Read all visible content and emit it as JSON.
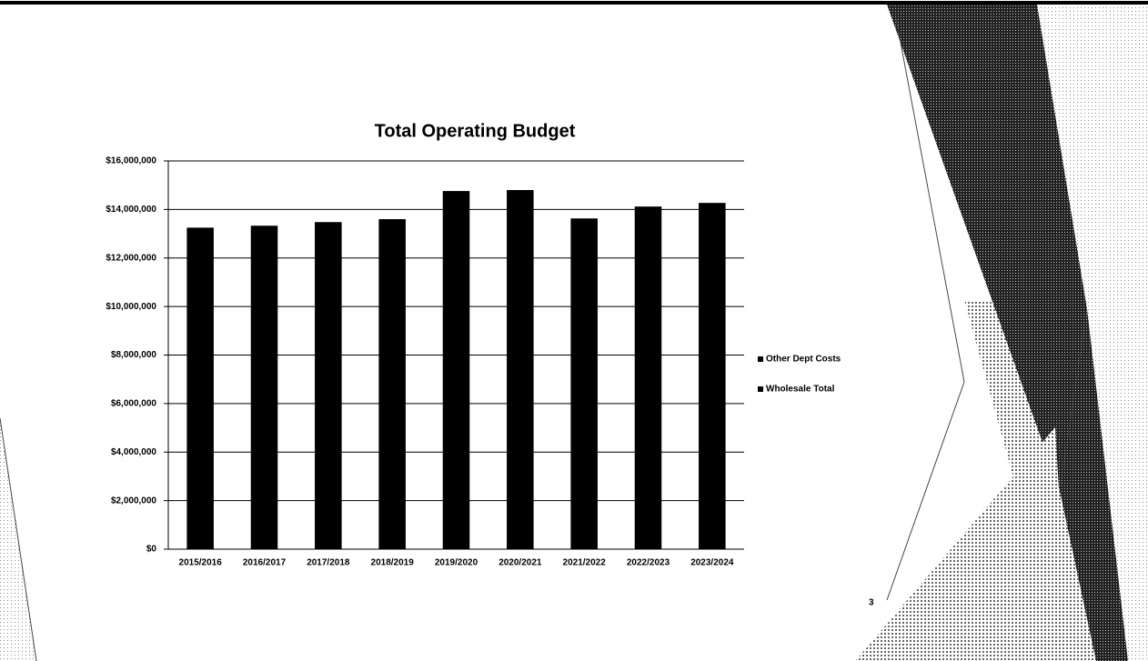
{
  "chart_data": {
    "type": "bar",
    "title": "Total Operating Budget",
    "categories": [
      "2015/2016",
      "2016/2017",
      "2017/2018",
      "2018/2019",
      "2019/2020",
      "2020/2021",
      "2021/2022",
      "2022/2023",
      "2023/2024"
    ],
    "values": [
      13250000,
      13330000,
      13480000,
      13600000,
      14760000,
      14800000,
      13630000,
      14120000,
      14270000
    ],
    "color": "#000000",
    "legend": [
      "Other Dept Costs",
      "Wholesale Total"
    ],
    "legend_position": "right",
    "ylim": [
      0,
      16000000
    ],
    "yticks": [
      {
        "value": 0,
        "label": "$0"
      },
      {
        "value": 2000000,
        "label": "$2,000,000"
      },
      {
        "value": 4000000,
        "label": "$4,000,000"
      },
      {
        "value": 6000000,
        "label": "$6,000,000"
      },
      {
        "value": 8000000,
        "label": "$8,000,000"
      },
      {
        "value": 10000000,
        "label": "$10,000,000"
      },
      {
        "value": 12000000,
        "label": "$12,000,000"
      },
      {
        "value": 14000000,
        "label": "$14,000,000"
      },
      {
        "value": 16000000,
        "label": "$16,000,000"
      }
    ],
    "grid": true
  },
  "slide": {
    "page_number": "3"
  }
}
